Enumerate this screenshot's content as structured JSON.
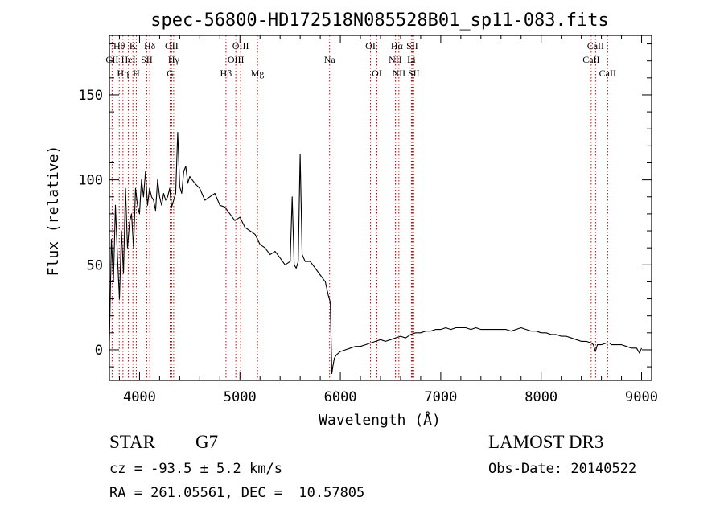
{
  "chart_data": {
    "type": "line",
    "title": "spec-56800-HD172518N085528B01_sp11-083.fits",
    "xlabel": "Wavelength (Å)",
    "ylabel": "Flux (relative)",
    "xlim": [
      3700,
      9100
    ],
    "ylim": [
      -18,
      185
    ],
    "xticks": [
      4000,
      5000,
      6000,
      7000,
      8000,
      9000
    ],
    "xtick_labels": [
      "4000",
      "5000",
      "6000",
      "7000",
      "8000",
      "9000"
    ],
    "yticks": [
      0,
      50,
      100,
      150
    ],
    "ytick_labels": [
      "0",
      "50",
      "100",
      "150"
    ],
    "grid": false,
    "line_color": "#000000",
    "marker_color": "#cc0000",
    "series": [
      {
        "x": [
          3700,
          3720,
          3740,
          3760,
          3780,
          3800,
          3820,
          3840,
          3860,
          3880,
          3900,
          3920,
          3940,
          3960,
          3980,
          4000,
          4020,
          4040,
          4060,
          4080,
          4100,
          4120,
          4140,
          4160,
          4180,
          4200,
          4220,
          4240,
          4260,
          4280,
          4300,
          4320,
          4340,
          4360,
          4380,
          4400,
          4420,
          4440,
          4460,
          4480,
          4500,
          4550,
          4600,
          4650,
          4700,
          4750,
          4800,
          4850,
          4900,
          4950,
          5000,
          5050,
          5100,
          5150,
          5200,
          5250,
          5300,
          5350,
          5400,
          5450,
          5500,
          5520,
          5540,
          5560,
          5580,
          5600,
          5620,
          5650,
          5700,
          5750,
          5800,
          5850,
          5880,
          5900,
          5915,
          5925,
          5940,
          5960,
          6000,
          6050,
          6100,
          6150,
          6200,
          6250,
          6300,
          6350,
          6400,
          6450,
          6500,
          6550,
          6600,
          6650,
          6700,
          6750,
          6800,
          6850,
          6900,
          6950,
          7000,
          7050,
          7100,
          7150,
          7200,
          7250,
          7300,
          7350,
          7400,
          7450,
          7500,
          7550,
          7600,
          7650,
          7700,
          7750,
          7800,
          7850,
          7900,
          7950,
          8000,
          8050,
          8100,
          8150,
          8200,
          8250,
          8300,
          8350,
          8400,
          8450,
          8500,
          8520,
          8540,
          8560,
          8600,
          8650,
          8680,
          8700,
          8750,
          8800,
          8850,
          8900,
          8950,
          8980,
          9000
        ],
        "y": [
          5,
          65,
          40,
          85,
          55,
          30,
          70,
          45,
          95,
          60,
          75,
          80,
          60,
          95,
          85,
          80,
          100,
          90,
          105,
          85,
          95,
          90,
          88,
          82,
          100,
          90,
          85,
          92,
          88,
          90,
          95,
          84,
          88,
          92,
          128,
          96,
          92,
          105,
          108,
          98,
          102,
          98,
          95,
          88,
          90,
          92,
          85,
          84,
          80,
          76,
          78,
          72,
          70,
          68,
          62,
          60,
          56,
          58,
          54,
          50,
          52,
          90,
          50,
          48,
          52,
          115,
          56,
          52,
          52,
          48,
          44,
          40,
          32,
          28,
          -14,
          -10,
          -5,
          -3,
          -1,
          0,
          1,
          2,
          2,
          3,
          4,
          5,
          6,
          5,
          6,
          7,
          8,
          7,
          9,
          10,
          10,
          11,
          11,
          12,
          12,
          13,
          12,
          13,
          13,
          13,
          12,
          13,
          12,
          12,
          12,
          12,
          12,
          12,
          11,
          12,
          13,
          12,
          11,
          11,
          10,
          10,
          9,
          9,
          8,
          8,
          7,
          6,
          5,
          5,
          4,
          3,
          -1,
          3,
          3,
          4,
          4,
          3,
          3,
          3,
          2,
          1,
          1,
          -2,
          1
        ]
      }
    ],
    "lines": [
      {
        "name": "CII",
        "wl": 3727,
        "row": 2
      },
      {
        "name": "Hθ",
        "wl": 3798,
        "row": 1
      },
      {
        "name": "Hη",
        "wl": 3835,
        "row": 3
      },
      {
        "name": "HeI",
        "wl": 3889,
        "row": 2
      },
      {
        "name": "K",
        "wl": 3934,
        "row": 1
      },
      {
        "name": "H",
        "wl": 3968,
        "row": 3
      },
      {
        "name": "SII",
        "wl": 4072,
        "row": 2
      },
      {
        "name": "Hδ",
        "wl": 4102,
        "row": 1
      },
      {
        "name": "G",
        "wl": 4305,
        "row": 3
      },
      {
        "name": "OII",
        "wl": 4320,
        "row": 1
      },
      {
        "name": "Hγ",
        "wl": 4340,
        "row": 2
      },
      {
        "name": "Hβ",
        "wl": 4861,
        "row": 3
      },
      {
        "name": "OIII",
        "wl": 4959,
        "row": 2
      },
      {
        "name": "OIII",
        "wl": 5007,
        "row": 1
      },
      {
        "name": "Mg",
        "wl": 5175,
        "row": 3
      },
      {
        "name": "Na",
        "wl": 5893,
        "row": 2
      },
      {
        "name": "OI",
        "wl": 6300,
        "row": 1
      },
      {
        "name": "OI",
        "wl": 6364,
        "row": 3
      },
      {
        "name": "NII",
        "wl": 6548,
        "row": 2
      },
      {
        "name": "Hα",
        "wl": 6563,
        "row": 1
      },
      {
        "name": "NII",
        "wl": 6583,
        "row": 3
      },
      {
        "name": "Li",
        "wl": 6708,
        "row": 2
      },
      {
        "name": "SII",
        "wl": 6716,
        "row": 1
      },
      {
        "name": "SII",
        "wl": 6731,
        "row": 3
      },
      {
        "name": "CaII",
        "wl": 8498,
        "row": 2
      },
      {
        "name": "CaII",
        "wl": 8542,
        "row": 1
      },
      {
        "name": "CaII",
        "wl": 8662,
        "row": 3
      }
    ]
  },
  "info": {
    "class": "STAR",
    "subclass": "G7",
    "survey": "LAMOST DR3",
    "cz": "cz = -93.5 ± 5.2 km/s",
    "obs_date": "Obs-Date: 20140522",
    "coords": "RA = 261.05561, DEC =  10.57805"
  }
}
